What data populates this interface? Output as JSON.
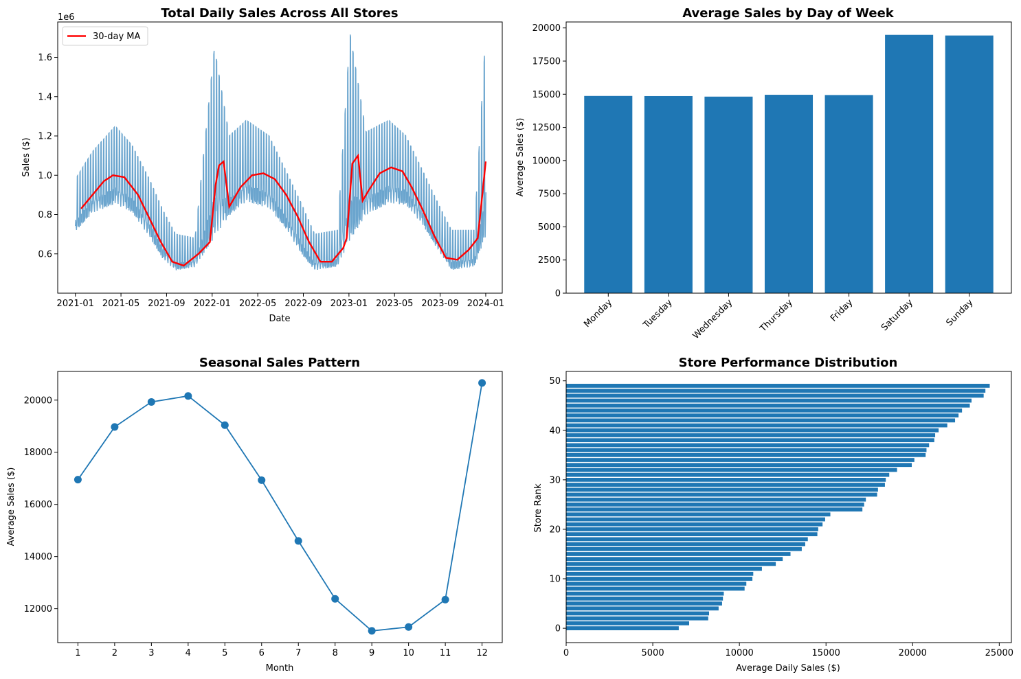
{
  "chart_data": [
    {
      "type": "line",
      "title": "Total Daily Sales Across All Stores",
      "xlabel": "Date",
      "ylabel": "Sales ($)",
      "y_multiplier_label": "1e6",
      "x_tick_labels": [
        "2021-01",
        "2021-05",
        "2021-09",
        "2022-01",
        "2022-05",
        "2022-09",
        "2023-01",
        "2023-05",
        "2023-09",
        "2024-01"
      ],
      "yticks": [
        0.6,
        0.8,
        1.0,
        1.2,
        1.4,
        1.6
      ],
      "ytick_labels": [
        "0.6",
        "0.8",
        "1.0",
        "1.2",
        "1.4",
        "1.6"
      ],
      "ylim": [
        0.4,
        1.78
      ],
      "xlim_months": [
        -1.55,
        37.45
      ],
      "legend": {
        "position": "top-left",
        "entries": [
          "30-day MA"
        ]
      },
      "series": [
        {
          "name": "",
          "color": "#5b9bc9",
          "kind": "daily",
          "envelope_low_y": [
            0.69,
            0.78,
            0.82,
            0.78,
            0.66,
            0.55,
            0.5,
            0.52,
            0.6,
            0.76,
            0.83,
            0.8,
            0.7,
            0.58,
            0.5,
            0.52,
            0.58,
            0.76,
            0.82,
            0.82,
            0.72,
            0.6,
            0.5,
            0.52,
            0.6
          ],
          "envelope_high_y": [
            0.98,
            1.12,
            1.25,
            1.15,
            0.98,
            0.82,
            0.7,
            0.68,
            1.65,
            1.2,
            1.28,
            1.2,
            1.02,
            0.86,
            0.7,
            0.72,
            1.72,
            1.22,
            1.28,
            1.2,
            1.02,
            0.86,
            0.72,
            0.72,
            1.72
          ],
          "envelope_x_months": [
            0,
            1.5,
            3.5,
            5,
            6.5,
            7.7,
            8.8,
            10.5,
            12.2,
            13.5,
            15,
            17,
            18.5,
            19.8,
            21,
            23,
            24.1,
            25.5,
            27.5,
            29,
            30.5,
            31.8,
            33,
            35,
            36
          ]
        },
        {
          "name": "30-day MA",
          "color": "#ff0000",
          "x_months": [
            0.5,
            1.5,
            2.5,
            3.3,
            4.3,
            5.5,
            6.5,
            7.5,
            8.5,
            9.5,
            10.8,
            11.8,
            12.3,
            12.6,
            13,
            13.5,
            14.5,
            15.5,
            16.5,
            17.5,
            18.5,
            19.5,
            20.5,
            21.5,
            22.5,
            23.5,
            23.8,
            24.3,
            24.8,
            25.2,
            25.7,
            26.7,
            27.7,
            28.7,
            29.5,
            30.5,
            31.5,
            32.5,
            33.5,
            34.5,
            35.3,
            35.7,
            36
          ],
          "y": [
            0.83,
            0.9,
            0.97,
            1.0,
            0.99,
            0.9,
            0.78,
            0.66,
            0.56,
            0.54,
            0.6,
            0.66,
            0.95,
            1.05,
            1.07,
            0.84,
            0.94,
            1.0,
            1.01,
            0.98,
            0.9,
            0.79,
            0.66,
            0.56,
            0.56,
            0.63,
            0.68,
            1.06,
            1.1,
            0.87,
            0.92,
            1.01,
            1.04,
            1.02,
            0.94,
            0.82,
            0.69,
            0.58,
            0.57,
            0.62,
            0.68,
            0.9,
            1.07
          ]
        }
      ]
    },
    {
      "type": "bar",
      "title": "Average Sales by Day of Week",
      "xlabel": "",
      "ylabel": "Average Sales ($)",
      "categories": [
        "Monday",
        "Tuesday",
        "Wednesday",
        "Thursday",
        "Friday",
        "Saturday",
        "Sunday"
      ],
      "values": [
        14870,
        14860,
        14820,
        14960,
        14940,
        19480,
        19430
      ],
      "yticks": [
        0,
        2500,
        5000,
        7500,
        10000,
        12500,
        15000,
        17500,
        20000
      ],
      "ylim": [
        0,
        20450
      ],
      "color": "#1f77b4"
    },
    {
      "type": "line",
      "title": "Seasonal Sales Pattern",
      "xlabel": "Month",
      "ylabel": "Average Sales ($)",
      "x": [
        1,
        2,
        3,
        4,
        5,
        6,
        7,
        8,
        9,
        10,
        11,
        12
      ],
      "values": [
        16950,
        18970,
        19930,
        20160,
        19040,
        16930,
        14600,
        12380,
        11150,
        11300,
        12350,
        20660
      ],
      "xticks": [
        1,
        2,
        3,
        4,
        5,
        6,
        7,
        8,
        9,
        10,
        11,
        12
      ],
      "yticks": [
        12000,
        14000,
        16000,
        18000,
        20000
      ],
      "ylim": [
        10700,
        21100
      ],
      "xlim": [
        0.45,
        12.55
      ],
      "color": "#1f77b4"
    },
    {
      "type": "bar",
      "orientation": "horizontal",
      "title": "Store Performance Distribution",
      "xlabel": "Average Daily Sales ($)",
      "ylabel": "Store Rank",
      "ranks": [
        0,
        1,
        2,
        3,
        4,
        5,
        6,
        7,
        8,
        9,
        10,
        11,
        12,
        13,
        14,
        15,
        16,
        17,
        18,
        19,
        20,
        21,
        22,
        23,
        24,
        25,
        26,
        27,
        28,
        29,
        30,
        31,
        32,
        33,
        34,
        35,
        36,
        37,
        38,
        39,
        40,
        41,
        42,
        43,
        44,
        45,
        46,
        47,
        48,
        49
      ],
      "values": [
        6500,
        7100,
        8200,
        8250,
        8800,
        9000,
        9050,
        9100,
        10300,
        10400,
        10750,
        10800,
        11300,
        12100,
        12500,
        12950,
        13600,
        13800,
        13950,
        14500,
        14550,
        14800,
        14950,
        15250,
        17100,
        17200,
        17300,
        17950,
        18000,
        18400,
        18450,
        18650,
        19100,
        19950,
        20100,
        20750,
        20800,
        20950,
        21250,
        21300,
        21500,
        22000,
        22450,
        22650,
        22850,
        23300,
        23400,
        24100,
        24200,
        24450
      ],
      "xticks": [
        0,
        5000,
        10000,
        15000,
        20000,
        25000
      ],
      "yticks": [
        0,
        10,
        20,
        30,
        40,
        50
      ],
      "xlim": [
        0,
        25700
      ],
      "ylim": [
        -2.9,
        51.9
      ],
      "color": "#1f77b4"
    }
  ]
}
